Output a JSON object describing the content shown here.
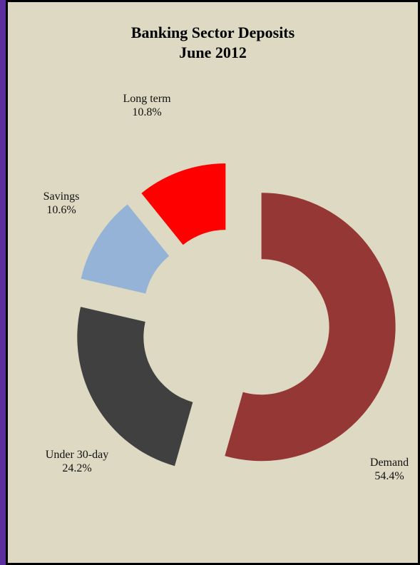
{
  "chart_data": {
    "type": "donut",
    "title": "Banking Sector Deposits",
    "subtitle": "June 2012",
    "categories": [
      "Demand",
      "Under 30-day",
      "Savings",
      "Long term"
    ],
    "values": [
      54.4,
      24.2,
      10.6,
      10.8
    ],
    "value_labels": [
      "54.4%",
      "24.2%",
      "10.6%",
      "10.8%"
    ],
    "colors": [
      "#953735",
      "#404040",
      "#95b3d7",
      "#ff0000"
    ]
  }
}
